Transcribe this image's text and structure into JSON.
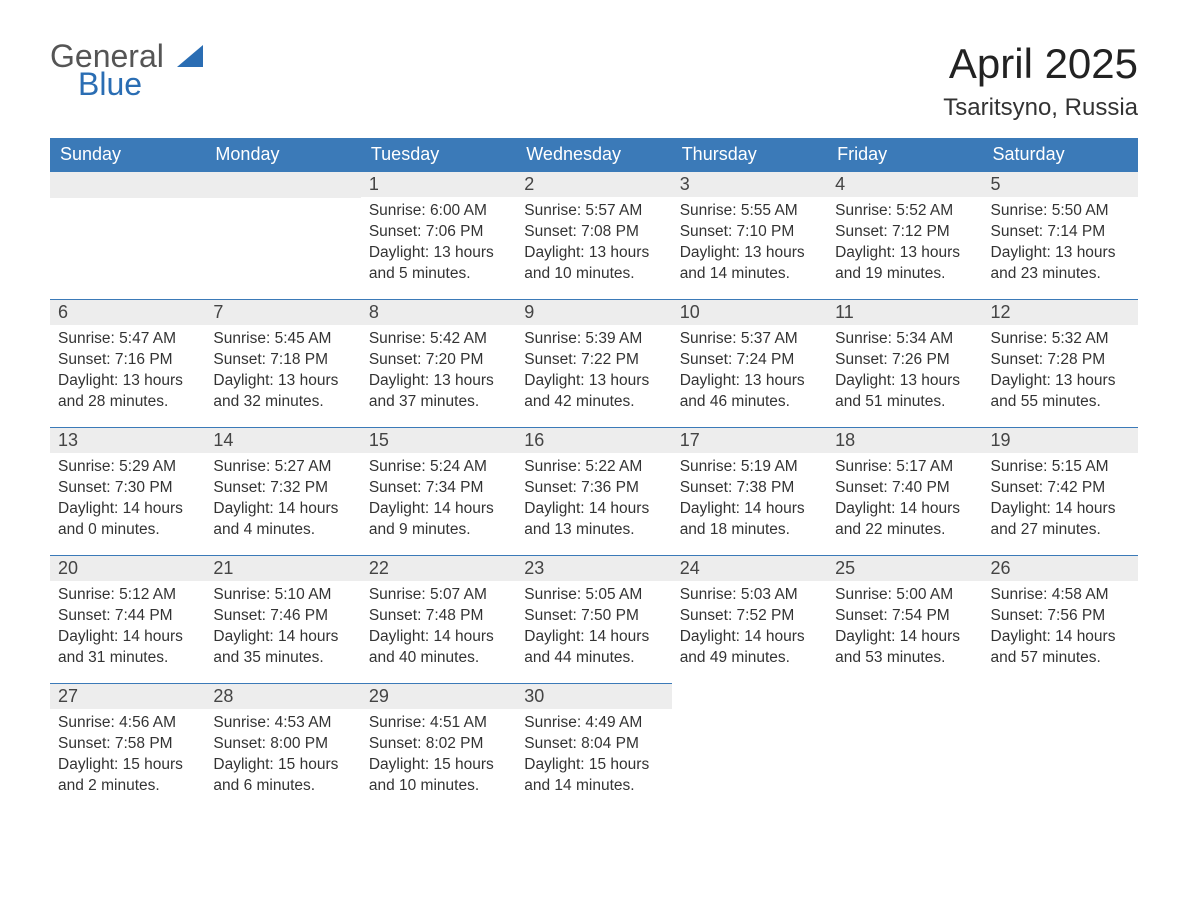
{
  "brand": {
    "top": "General",
    "bottom": "Blue"
  },
  "title": "April 2025",
  "location": "Tsaritsyno, Russia",
  "colors": {
    "header_bg": "#3b7ab8",
    "header_text": "#ffffff",
    "daynum_bg": "#ededed",
    "border": "#3b7ab8",
    "body_text": "#333333",
    "brand_blue": "#2a6db3"
  },
  "weekdays": [
    "Sunday",
    "Monday",
    "Tuesday",
    "Wednesday",
    "Thursday",
    "Friday",
    "Saturday"
  ],
  "weeks": [
    [
      null,
      null,
      {
        "n": "1",
        "sr": "6:00 AM",
        "ss": "7:06 PM",
        "dl": "13 hours and 5 minutes."
      },
      {
        "n": "2",
        "sr": "5:57 AM",
        "ss": "7:08 PM",
        "dl": "13 hours and 10 minutes."
      },
      {
        "n": "3",
        "sr": "5:55 AM",
        "ss": "7:10 PM",
        "dl": "13 hours and 14 minutes."
      },
      {
        "n": "4",
        "sr": "5:52 AM",
        "ss": "7:12 PM",
        "dl": "13 hours and 19 minutes."
      },
      {
        "n": "5",
        "sr": "5:50 AM",
        "ss": "7:14 PM",
        "dl": "13 hours and 23 minutes."
      }
    ],
    [
      {
        "n": "6",
        "sr": "5:47 AM",
        "ss": "7:16 PM",
        "dl": "13 hours and 28 minutes."
      },
      {
        "n": "7",
        "sr": "5:45 AM",
        "ss": "7:18 PM",
        "dl": "13 hours and 32 minutes."
      },
      {
        "n": "8",
        "sr": "5:42 AM",
        "ss": "7:20 PM",
        "dl": "13 hours and 37 minutes."
      },
      {
        "n": "9",
        "sr": "5:39 AM",
        "ss": "7:22 PM",
        "dl": "13 hours and 42 minutes."
      },
      {
        "n": "10",
        "sr": "5:37 AM",
        "ss": "7:24 PM",
        "dl": "13 hours and 46 minutes."
      },
      {
        "n": "11",
        "sr": "5:34 AM",
        "ss": "7:26 PM",
        "dl": "13 hours and 51 minutes."
      },
      {
        "n": "12",
        "sr": "5:32 AM",
        "ss": "7:28 PM",
        "dl": "13 hours and 55 minutes."
      }
    ],
    [
      {
        "n": "13",
        "sr": "5:29 AM",
        "ss": "7:30 PM",
        "dl": "14 hours and 0 minutes."
      },
      {
        "n": "14",
        "sr": "5:27 AM",
        "ss": "7:32 PM",
        "dl": "14 hours and 4 minutes."
      },
      {
        "n": "15",
        "sr": "5:24 AM",
        "ss": "7:34 PM",
        "dl": "14 hours and 9 minutes."
      },
      {
        "n": "16",
        "sr": "5:22 AM",
        "ss": "7:36 PM",
        "dl": "14 hours and 13 minutes."
      },
      {
        "n": "17",
        "sr": "5:19 AM",
        "ss": "7:38 PM",
        "dl": "14 hours and 18 minutes."
      },
      {
        "n": "18",
        "sr": "5:17 AM",
        "ss": "7:40 PM",
        "dl": "14 hours and 22 minutes."
      },
      {
        "n": "19",
        "sr": "5:15 AM",
        "ss": "7:42 PM",
        "dl": "14 hours and 27 minutes."
      }
    ],
    [
      {
        "n": "20",
        "sr": "5:12 AM",
        "ss": "7:44 PM",
        "dl": "14 hours and 31 minutes."
      },
      {
        "n": "21",
        "sr": "5:10 AM",
        "ss": "7:46 PM",
        "dl": "14 hours and 35 minutes."
      },
      {
        "n": "22",
        "sr": "5:07 AM",
        "ss": "7:48 PM",
        "dl": "14 hours and 40 minutes."
      },
      {
        "n": "23",
        "sr": "5:05 AM",
        "ss": "7:50 PM",
        "dl": "14 hours and 44 minutes."
      },
      {
        "n": "24",
        "sr": "5:03 AM",
        "ss": "7:52 PM",
        "dl": "14 hours and 49 minutes."
      },
      {
        "n": "25",
        "sr": "5:00 AM",
        "ss": "7:54 PM",
        "dl": "14 hours and 53 minutes."
      },
      {
        "n": "26",
        "sr": "4:58 AM",
        "ss": "7:56 PM",
        "dl": "14 hours and 57 minutes."
      }
    ],
    [
      {
        "n": "27",
        "sr": "4:56 AM",
        "ss": "7:58 PM",
        "dl": "15 hours and 2 minutes."
      },
      {
        "n": "28",
        "sr": "4:53 AM",
        "ss": "8:00 PM",
        "dl": "15 hours and 6 minutes."
      },
      {
        "n": "29",
        "sr": "4:51 AM",
        "ss": "8:02 PM",
        "dl": "15 hours and 10 minutes."
      },
      {
        "n": "30",
        "sr": "4:49 AM",
        "ss": "8:04 PM",
        "dl": "15 hours and 14 minutes."
      },
      null,
      null,
      null
    ]
  ],
  "labels": {
    "sunrise": "Sunrise: ",
    "sunset": "Sunset: ",
    "daylight": "Daylight: "
  }
}
